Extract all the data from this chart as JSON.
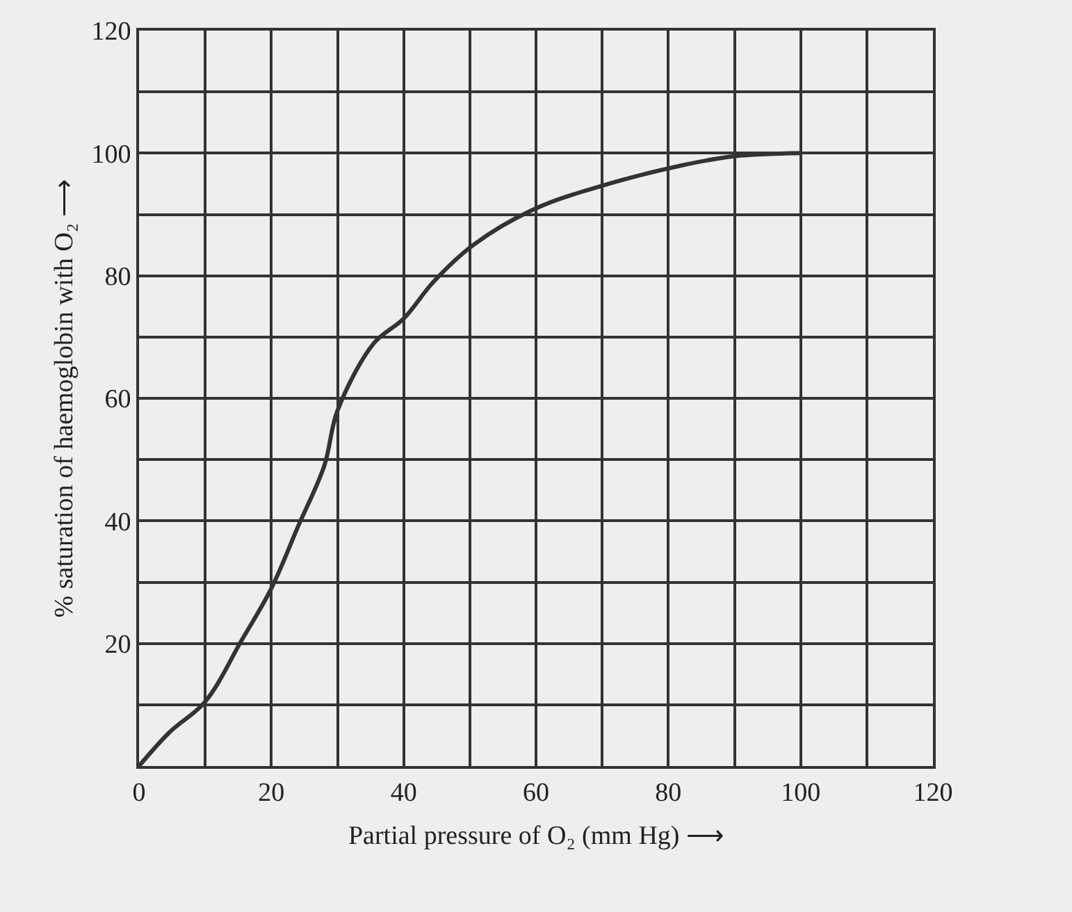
{
  "chart_data": {
    "type": "line",
    "xlabel": "Partial pressure of O₂ (mm Hg) ⟶",
    "ylabel": "% saturation of haemoglobin with O₂ ⟶",
    "x": [
      0,
      4.6,
      10,
      15.5,
      20,
      24,
      28,
      30,
      35.5,
      40,
      44.5,
      50.5,
      60,
      71,
      82,
      90,
      100
    ],
    "series": [
      {
        "color": "#333333",
        "values": [
          0,
          5.5,
          10.5,
          20.5,
          29,
          39,
          49,
          58,
          69,
          73,
          79,
          85,
          91,
          95,
          98,
          99.5,
          100
        ]
      }
    ],
    "xlim": [
      0,
      120
    ],
    "ylim": [
      0,
      120
    ],
    "xticks": [
      0,
      {
        "value": 10,
        "label": null
      },
      20,
      {
        "value": 30,
        "label": null
      },
      40,
      {
        "value": 50,
        "label": null
      },
      60,
      {
        "value": 70,
        "label": null
      },
      80,
      {
        "value": 90,
        "label": null
      },
      100,
      {
        "value": 110,
        "label": null
      },
      120
    ],
    "yticks": [
      {
        "value": 0,
        "label": null
      },
      {
        "value": 10,
        "label": null
      },
      20,
      {
        "value": 30,
        "label": null
      },
      40,
      {
        "value": 50,
        "label": null
      },
      60,
      {
        "value": 70,
        "label": null
      },
      80,
      {
        "value": 90,
        "label": null
      },
      100,
      {
        "value": 110,
        "label": null
      },
      120
    ],
    "grid": true,
    "marker": "none",
    "line_style": "solid"
  }
}
